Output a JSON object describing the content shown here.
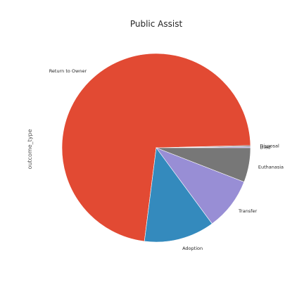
{
  "chart_data": {
    "type": "pie",
    "title": "Public Assist",
    "ylabel": "outcome_type",
    "start_angle_deg": 0,
    "direction": "counterclockwise",
    "slices": [
      {
        "label": "Died",
        "value": 0.2,
        "color": "#988ed5"
      },
      {
        "label": "Disposal",
        "value": 0.2,
        "color": "#777777"
      },
      {
        "label": "Return to Owner",
        "value": 72.6,
        "color": "#e24a33"
      },
      {
        "label": "Adoption",
        "value": 12.1,
        "color": "#348abd"
      },
      {
        "label": "Transfer",
        "value": 9.0,
        "color": "#988ed5"
      },
      {
        "label": "Euthanasia",
        "value": 5.9,
        "color": "#777777"
      }
    ]
  }
}
